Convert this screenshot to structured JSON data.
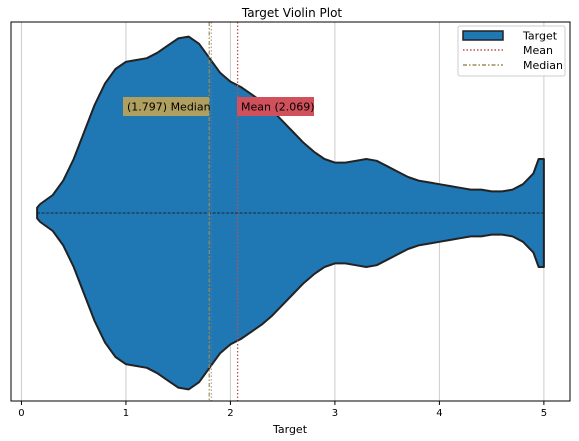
{
  "chart_data": {
    "type": "violin",
    "title": "Target Violin Plot",
    "xlabel": "Target",
    "ylabel": "",
    "xlim": [
      -0.1,
      5.25
    ],
    "xticks": [
      0,
      1,
      2,
      3,
      4,
      5
    ],
    "xtick_labels": [
      "0",
      "1",
      "2",
      "3",
      "4",
      "5"
    ],
    "grid": "vertical",
    "legend_position": "top-right",
    "series": [
      {
        "name": "Target",
        "color": "#1f77b4",
        "edge_color": "#222222",
        "density_profile": {
          "x": [
            0.15,
            0.18,
            0.3,
            0.4,
            0.5,
            0.6,
            0.7,
            0.8,
            0.9,
            1.0,
            1.1,
            1.2,
            1.3,
            1.4,
            1.5,
            1.6,
            1.7,
            1.8,
            1.9,
            2.0,
            2.1,
            2.2,
            2.3,
            2.4,
            2.5,
            2.6,
            2.7,
            2.8,
            2.9,
            3.0,
            3.1,
            3.2,
            3.3,
            3.4,
            3.5,
            3.6,
            3.7,
            3.8,
            3.9,
            4.0,
            4.1,
            4.2,
            4.3,
            4.4,
            4.5,
            4.6,
            4.7,
            4.8,
            4.9,
            4.95,
            5.0
          ],
          "relative_width": [
            0.03,
            0.05,
            0.1,
            0.18,
            0.3,
            0.45,
            0.6,
            0.72,
            0.8,
            0.84,
            0.85,
            0.86,
            0.89,
            0.93,
            0.97,
            0.98,
            0.94,
            0.86,
            0.78,
            0.73,
            0.7,
            0.66,
            0.62,
            0.57,
            0.51,
            0.45,
            0.39,
            0.34,
            0.3,
            0.28,
            0.28,
            0.29,
            0.3,
            0.29,
            0.26,
            0.23,
            0.2,
            0.18,
            0.17,
            0.16,
            0.15,
            0.14,
            0.13,
            0.13,
            0.12,
            0.12,
            0.13,
            0.16,
            0.22,
            0.3,
            0.3
          ]
        }
      }
    ],
    "mean": 2.069,
    "median": 1.797,
    "mean_label": "Mean (2.069)",
    "median_label": "(1.797) Median",
    "legend": {
      "entries": [
        {
          "label": "Target",
          "style": "patch"
        },
        {
          "label": "Mean",
          "style": "dotted"
        },
        {
          "label": "Median",
          "style": "dashdot"
        }
      ]
    },
    "colors": {
      "mean_line": "#c0504d",
      "median_line": "#a08c55",
      "mean_box": "#d0505c",
      "median_box": "#b0a060",
      "grid": "#cccccc"
    }
  }
}
